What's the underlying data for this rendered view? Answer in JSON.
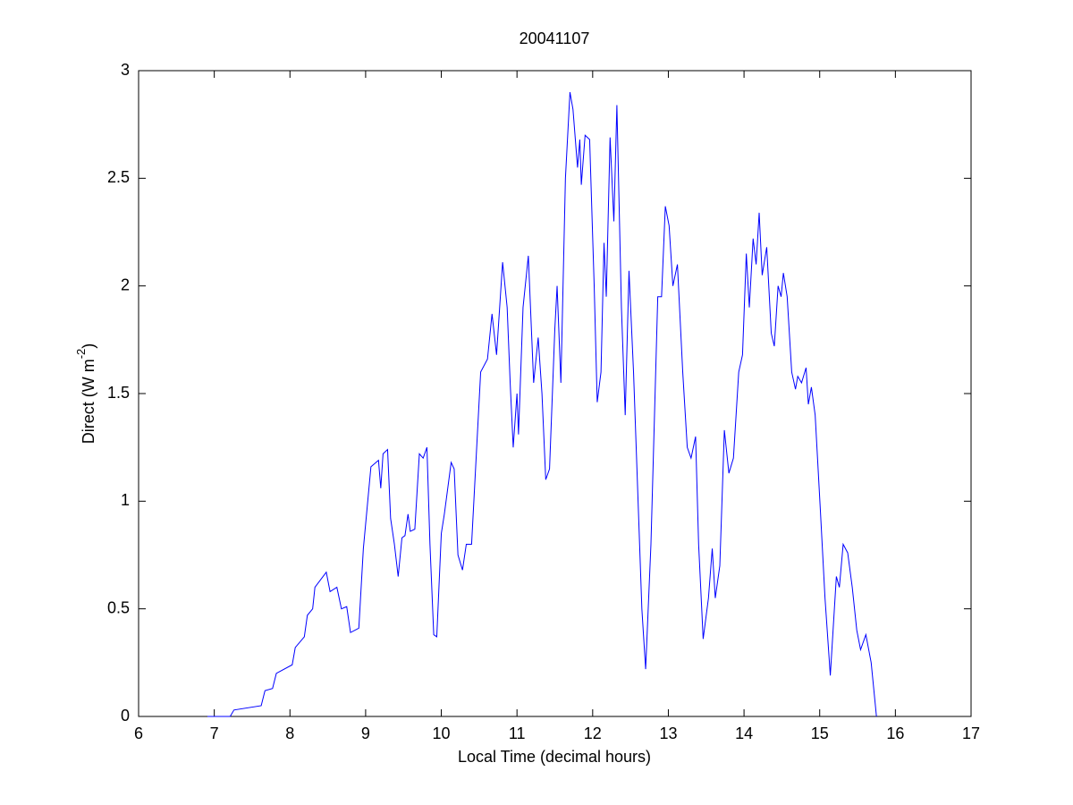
{
  "chart_data": {
    "type": "line",
    "title": "20041107",
    "xlabel": "Local Time (decimal hours)",
    "ylabel": {
      "main": "Direct (W m",
      "superscript": "-2",
      "end": ")"
    },
    "xlim": [
      6,
      17
    ],
    "xticks": [
      6,
      7,
      8,
      9,
      10,
      11,
      12,
      13,
      14,
      15,
      16,
      17
    ],
    "ylim": [
      0,
      3
    ],
    "yticks": [
      0,
      {
        "value": 0.5,
        "label": "0.5"
      },
      1,
      {
        "value": 1.5,
        "label": "1.5"
      },
      2,
      {
        "value": 2.5,
        "label": "2.5"
      },
      3
    ],
    "grid": false,
    "color": "#0000ff",
    "x": [
      6.91,
      7.21,
      7.26,
      7.62,
      7.67,
      7.77,
      7.82,
      8.03,
      8.07,
      8.19,
      8.23,
      8.3,
      8.33,
      8.48,
      8.53,
      8.62,
      8.68,
      8.75,
      8.8,
      8.91,
      8.97,
      9.07,
      9.17,
      9.2,
      9.23,
      9.29,
      9.33,
      9.38,
      9.43,
      9.48,
      9.52,
      9.56,
      9.59,
      9.65,
      9.71,
      9.76,
      9.81,
      9.85,
      9.9,
      9.94,
      10.0,
      10.04,
      10.13,
      10.17,
      10.22,
      10.28,
      10.33,
      10.4,
      10.52,
      10.61,
      10.67,
      10.73,
      10.81,
      10.87,
      10.91,
      10.95,
      11.0,
      11.02,
      11.08,
      11.15,
      11.22,
      11.28,
      11.33,
      11.38,
      11.43,
      11.5,
      11.53,
      11.58,
      11.64,
      11.7,
      11.74,
      11.8,
      11.83,
      11.85,
      11.9,
      11.96,
      12.02,
      12.06,
      12.11,
      12.15,
      12.18,
      12.23,
      12.28,
      12.32,
      12.38,
      12.43,
      12.48,
      12.54,
      12.61,
      12.65,
      12.7,
      12.77,
      12.86,
      12.91,
      12.96,
      13.01,
      13.06,
      13.12,
      13.19,
      13.25,
      13.3,
      13.36,
      13.4,
      13.46,
      13.53,
      13.58,
      13.62,
      13.68,
      13.74,
      13.8,
      13.86,
      13.93,
      13.98,
      14.03,
      14.07,
      14.12,
      14.16,
      14.2,
      14.24,
      14.3,
      14.36,
      14.4,
      14.45,
      14.49,
      14.52,
      14.57,
      14.63,
      14.68,
      14.71,
      14.76,
      14.82,
      14.85,
      14.89,
      14.94,
      15.01,
      15.07,
      15.14,
      15.22,
      15.26,
      15.31,
      15.37,
      15.43,
      15.49,
      15.54,
      15.61,
      15.68,
      15.75
    ],
    "values": [
      0,
      0,
      0.03,
      0.05,
      0.12,
      0.13,
      0.2,
      0.24,
      0.32,
      0.37,
      0.47,
      0.5,
      0.6,
      0.67,
      0.58,
      0.6,
      0.5,
      0.51,
      0.39,
      0.41,
      0.78,
      1.16,
      1.19,
      1.06,
      1.22,
      1.24,
      0.92,
      0.8,
      0.65,
      0.83,
      0.84,
      0.94,
      0.86,
      0.87,
      1.22,
      1.2,
      1.25,
      0.8,
      0.38,
      0.37,
      0.85,
      0.94,
      1.18,
      1.15,
      0.75,
      0.68,
      0.8,
      0.8,
      1.6,
      1.66,
      1.87,
      1.68,
      2.11,
      1.9,
      1.55,
      1.25,
      1.5,
      1.31,
      1.9,
      2.14,
      1.55,
      1.76,
      1.5,
      1.1,
      1.15,
      1.8,
      2.0,
      1.55,
      2.5,
      2.9,
      2.82,
      2.55,
      2.68,
      2.47,
      2.7,
      2.68,
      2.0,
      1.46,
      1.6,
      2.2,
      1.95,
      2.69,
      2.3,
      2.84,
      1.9,
      1.4,
      2.07,
      1.6,
      0.9,
      0.5,
      0.22,
      0.8,
      1.95,
      1.95,
      2.37,
      2.28,
      2.0,
      2.1,
      1.6,
      1.25,
      1.2,
      1.3,
      0.8,
      0.36,
      0.55,
      0.78,
      0.55,
      0.7,
      1.33,
      1.13,
      1.2,
      1.6,
      1.68,
      2.15,
      1.9,
      2.22,
      2.1,
      2.34,
      2.05,
      2.18,
      1.78,
      1.72,
      2.0,
      1.95,
      2.06,
      1.95,
      1.6,
      1.52,
      1.58,
      1.55,
      1.62,
      1.45,
      1.53,
      1.4,
      0.95,
      0.55,
      0.19,
      0.65,
      0.6,
      0.8,
      0.76,
      0.6,
      0.4,
      0.31,
      0.38,
      0.25,
      0
    ]
  }
}
